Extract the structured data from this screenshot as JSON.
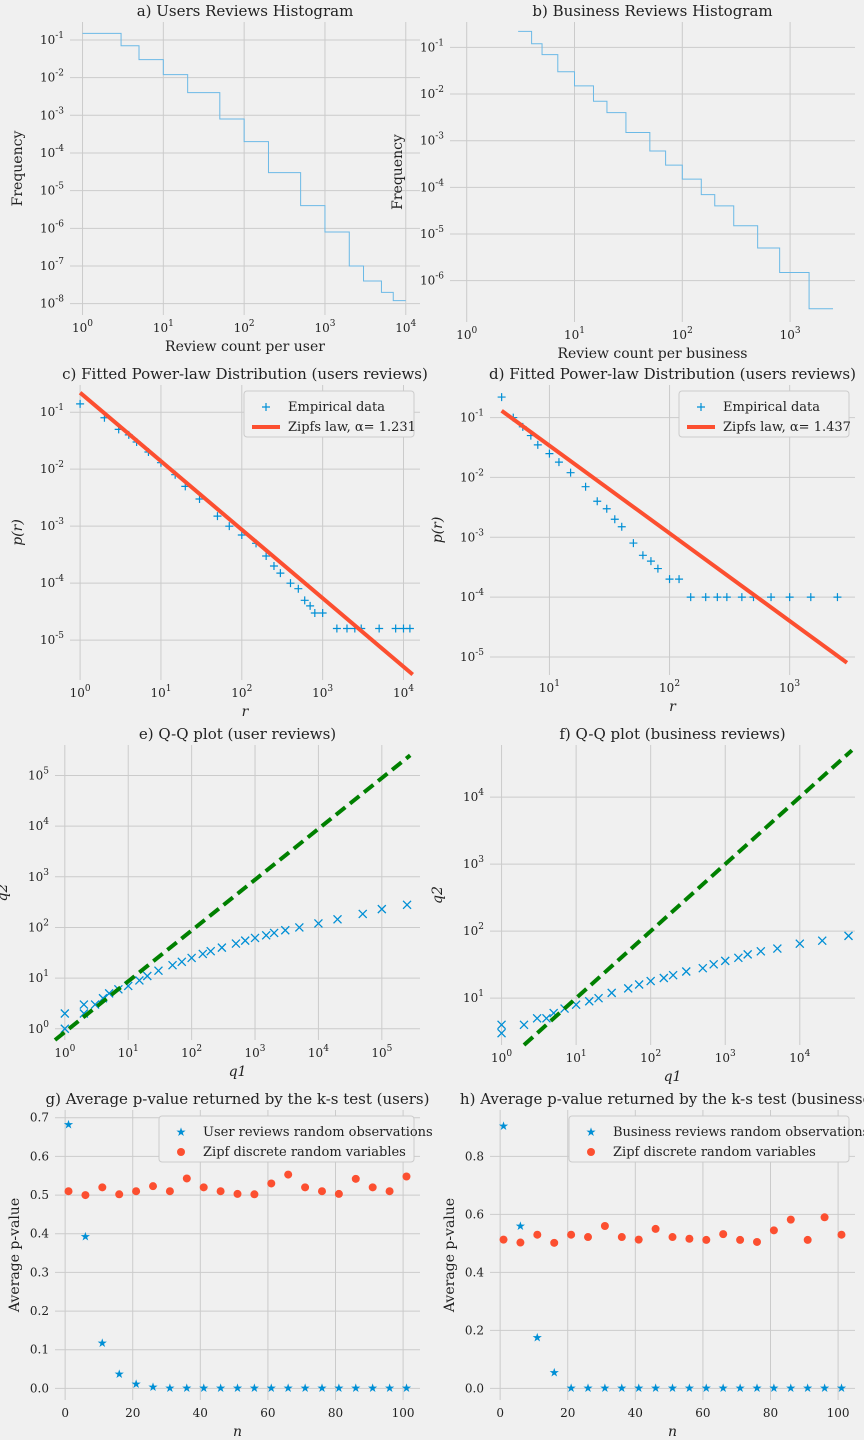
{
  "colors": {
    "blue": "#008fd5",
    "red": "#fc4f30",
    "green": "#008000",
    "grid": "#cbcbcb",
    "bg": "#f0f0f0"
  },
  "chart_data": [
    {
      "id": "a",
      "type": "line",
      "title": "a) Users Reviews Histogram",
      "xlabel": "Review count per user",
      "ylabel": "Frequency",
      "xscale": "log",
      "yscale": "log",
      "xlim": [
        0.7,
        15000
      ],
      "ylim": [
        5e-09,
        0.3
      ],
      "xticks": [
        1,
        10,
        100,
        1000,
        10000
      ],
      "xticklabels": [
        "10^0",
        "10^1",
        "10^2",
        "10^3",
        "10^4"
      ],
      "yticks": [
        1e-08,
        1e-07,
        1e-06,
        1e-05,
        0.0001,
        0.001,
        0.01,
        0.1
      ],
      "yticklabels": [
        "10^-8",
        "10^-7",
        "10^-6",
        "10^-5",
        "10^-4",
        "10^-3",
        "10^-2",
        "10^-1"
      ],
      "series": [
        {
          "style": "step",
          "color": "#6bb9e6",
          "x": [
            1,
            3,
            5,
            10,
            20,
            50,
            100,
            200,
            500,
            1000,
            2000,
            3000,
            5000,
            7000,
            10000
          ],
          "y": [
            0.15,
            0.07,
            0.03,
            0.012,
            0.004,
            0.0008,
            0.0002,
            3e-05,
            4e-06,
            8e-07,
            1e-07,
            4e-08,
            2e-08,
            1.2e-08,
            1.2e-08
          ]
        }
      ]
    },
    {
      "id": "b",
      "type": "line",
      "title": "b) Business Reviews Histogram",
      "xlabel": "Review count per business",
      "ylabel": "Frequency",
      "xscale": "log",
      "yscale": "log",
      "xlim": [
        0.7,
        4000
      ],
      "ylim": [
        1.3e-07,
        0.35
      ],
      "xticks": [
        1,
        10,
        100,
        1000
      ],
      "xticklabels": [
        "10^0",
        "10^1",
        "10^2",
        "10^3"
      ],
      "yticks": [
        1e-06,
        1e-05,
        0.0001,
        0.001,
        0.01,
        0.1
      ],
      "yticklabels": [
        "10^-6",
        "10^-5",
        "10^-4",
        "10^-3",
        "10^-2",
        "10^-1"
      ],
      "series": [
        {
          "style": "step",
          "color": "#6bb9e6",
          "x": [
            3,
            4,
            5,
            7,
            10,
            15,
            20,
            30,
            50,
            70,
            100,
            150,
            200,
            300,
            500,
            800,
            1500,
            2500
          ],
          "y": [
            0.22,
            0.12,
            0.07,
            0.03,
            0.015,
            0.007,
            0.004,
            0.0015,
            0.0006,
            0.0003,
            0.00015,
            7e-05,
            4e-05,
            1.5e-05,
            5e-06,
            1.5e-06,
            2.5e-07,
            2.5e-07
          ]
        }
      ]
    },
    {
      "id": "c",
      "type": "scatter",
      "title": "c) Fitted Power-law Distribution (users reviews)",
      "xlabel": "r",
      "ylabel": "p(r)",
      "xscale": "log",
      "yscale": "log",
      "xlim": [
        0.75,
        16000
      ],
      "ylim": [
        2e-06,
        0.3
      ],
      "xticks": [
        1,
        10,
        100,
        1000,
        10000
      ],
      "xticklabels": [
        "10^0",
        "10^1",
        "10^2",
        "10^3",
        "10^4"
      ],
      "yticks": [
        1e-05,
        0.0001,
        0.001,
        0.01,
        0.1
      ],
      "yticklabels": [
        "10^-5",
        "10^-4",
        "10^-3",
        "10^-2",
        "10^-1"
      ],
      "legend": [
        "Empirical data",
        "Zipfs law, α= 1.231"
      ],
      "legend_position": "upper right",
      "series": [
        {
          "name": "Empirical data",
          "marker": "plus",
          "color": "#008fd5",
          "kind": "scatter",
          "x": [
            1,
            2,
            3,
            4,
            5,
            7,
            10,
            15,
            20,
            30,
            50,
            70,
            100,
            150,
            200,
            250,
            300,
            400,
            500,
            600,
            700,
            800,
            1000,
            1500,
            2000,
            2500,
            3000,
            5000,
            8000,
            10000,
            12000
          ],
          "y": [
            0.14,
            0.08,
            0.05,
            0.04,
            0.03,
            0.02,
            0.013,
            0.008,
            0.005,
            0.003,
            0.0015,
            0.001,
            0.0007,
            0.0005,
            0.0003,
            0.0002,
            0.00015,
            0.0001,
            8e-05,
            5e-05,
            4e-05,
            3e-05,
            3e-05,
            1.6e-05,
            1.6e-05,
            1.6e-05,
            1.6e-05,
            1.6e-05,
            1.6e-05,
            1.6e-05,
            1.6e-05
          ]
        },
        {
          "name": "Zipfs law, α= 1.231",
          "kind": "line",
          "color": "#fc4f30",
          "x": [
            1,
            13000
          ],
          "y": [
            0.22,
            2.5e-06
          ]
        }
      ]
    },
    {
      "id": "d",
      "type": "scatter",
      "title": "d) Fitted Power-law Distribution (users reviews)",
      "xlabel": "r",
      "ylabel": "p(r)",
      "xscale": "log",
      "yscale": "log",
      "xlim": [
        3.2,
        3500
      ],
      "ylim": [
        5e-06,
        0.35
      ],
      "xticks": [
        10,
        100,
        1000
      ],
      "xticklabels": [
        "10^1",
        "10^2",
        "10^3"
      ],
      "yticks": [
        1e-05,
        0.0001,
        0.001,
        0.01,
        0.1
      ],
      "yticklabels": [
        "10^-5",
        "10^-4",
        "10^-3",
        "10^-2",
        "10^-1"
      ],
      "legend": [
        "Empirical data",
        "Zipfs law, α= 1.437"
      ],
      "legend_position": "upper right",
      "series": [
        {
          "name": "Empirical data",
          "marker": "plus",
          "color": "#008fd5",
          "kind": "scatter",
          "x": [
            4,
            5,
            6,
            7,
            8,
            10,
            12,
            15,
            20,
            25,
            30,
            35,
            40,
            50,
            60,
            70,
            80,
            100,
            120,
            150,
            200,
            250,
            300,
            400,
            500,
            700,
            1000,
            1500,
            2500
          ],
          "y": [
            0.22,
            0.1,
            0.07,
            0.05,
            0.035,
            0.025,
            0.018,
            0.012,
            0.007,
            0.004,
            0.003,
            0.002,
            0.0015,
            0.0008,
            0.0005,
            0.0004,
            0.0003,
            0.0002,
            0.0002,
            0.0001,
            0.0001,
            0.0001,
            0.0001,
            0.0001,
            0.0001,
            0.0001,
            0.0001,
            0.0001,
            0.0001
          ]
        },
        {
          "name": "Zipfs law, α= 1.437",
          "kind": "line",
          "color": "#fc4f30",
          "x": [
            4,
            3000
          ],
          "y": [
            0.13,
            8e-06
          ]
        }
      ]
    },
    {
      "id": "e",
      "type": "scatter",
      "title": "e) Q-Q plot (user reviews)",
      "xlabel": "q1",
      "ylabel": "q2",
      "xscale": "log",
      "yscale": "log",
      "xlim": [
        0.7,
        400000
      ],
      "ylim": [
        0.6,
        400000
      ],
      "xticks": [
        1,
        10,
        100,
        1000,
        10000,
        100000
      ],
      "xticklabels": [
        "10^0",
        "10^1",
        "10^2",
        "10^3",
        "10^4",
        "10^5"
      ],
      "yticks": [
        1,
        10,
        100,
        1000,
        10000,
        100000
      ],
      "yticklabels": [
        "10^0",
        "10^1",
        "10^2",
        "10^3",
        "10^4",
        "10^5"
      ],
      "series": [
        {
          "kind": "scatter",
          "marker": "x",
          "color": "#008fd5",
          "x": [
            1,
            1,
            2,
            2,
            3,
            4,
            5,
            7,
            10,
            15,
            20,
            30,
            50,
            70,
            100,
            150,
            200,
            300,
            500,
            700,
            1000,
            1500,
            2000,
            3000,
            5000,
            10000,
            20000,
            50000,
            100000,
            250000
          ],
          "y": [
            1,
            2,
            2,
            3,
            3,
            4,
            5,
            6,
            7,
            9,
            11,
            14,
            18,
            21,
            25,
            30,
            34,
            40,
            48,
            55,
            62,
            70,
            78,
            88,
            100,
            120,
            145,
            185,
            230,
            280
          ]
        },
        {
          "kind": "line",
          "style": "dashed",
          "color": "#008000",
          "x": [
            0.7,
            280000
          ],
          "y": [
            0.6,
            250000
          ]
        }
      ]
    },
    {
      "id": "f",
      "type": "scatter",
      "title": "f) Q-Q plot (business reviews)",
      "xlabel": "q1",
      "ylabel": "q2",
      "xscale": "log",
      "yscale": "log",
      "xlim": [
        0.7,
        55000
      ],
      "ylim": [
        2,
        60000
      ],
      "xticks": [
        1,
        10,
        100,
        1000,
        10000
      ],
      "xticklabels": [
        "10^0",
        "10^1",
        "10^2",
        "10^3",
        "10^4"
      ],
      "yticks": [
        10,
        100,
        1000,
        10000
      ],
      "yticklabels": [
        "10^1",
        "10^2",
        "10^3",
        "10^4"
      ],
      "series": [
        {
          "kind": "scatter",
          "marker": "x",
          "color": "#008fd5",
          "x": [
            1,
            1,
            2,
            3,
            4,
            5,
            7,
            10,
            15,
            20,
            30,
            50,
            70,
            100,
            150,
            200,
            300,
            500,
            700,
            1000,
            1500,
            2000,
            3000,
            5000,
            10000,
            20000,
            45000
          ],
          "y": [
            3,
            4,
            4,
            5,
            5,
            6,
            7,
            8,
            9,
            10,
            12,
            14,
            16,
            18,
            20,
            22,
            25,
            28,
            32,
            36,
            40,
            45,
            50,
            55,
            65,
            72,
            85
          ]
        },
        {
          "kind": "line",
          "style": "dashed",
          "color": "#008000",
          "x": [
            2,
            50000
          ],
          "y": [
            2,
            50000
          ]
        }
      ]
    },
    {
      "id": "g",
      "type": "scatter",
      "title": "g) Average p-value returned by the k-s test (users)",
      "xlabel": "n",
      "ylabel": "Average p-value",
      "xscale": "linear",
      "yscale": "linear",
      "xlim": [
        -3,
        105
      ],
      "ylim": [
        -0.03,
        0.72
      ],
      "xticks": [
        0,
        20,
        40,
        60,
        80,
        100
      ],
      "xticklabels": [
        "0",
        "20",
        "40",
        "60",
        "80",
        "100"
      ],
      "yticks": [
        0,
        0.1,
        0.2,
        0.3,
        0.4,
        0.5,
        0.6,
        0.7
      ],
      "yticklabels": [
        "0.0",
        "0.1",
        "0.2",
        "0.3",
        "0.4",
        "0.5",
        "0.6",
        "0.7"
      ],
      "legend": [
        "User reviews random observations",
        "Zipf discrete random variables"
      ],
      "legend_position": "upper right",
      "series": [
        {
          "name": "User reviews random observations",
          "kind": "scatter",
          "marker": "star",
          "color": "#008fd5",
          "x": [
            1,
            6,
            11,
            16,
            21,
            26,
            31,
            36,
            41,
            46,
            51,
            56,
            61,
            66,
            71,
            76,
            81,
            86,
            91,
            96,
            101
          ],
          "y": [
            0.683,
            0.393,
            0.118,
            0.037,
            0.012,
            0.004,
            0.001,
            0.001,
            0.001,
            0.001,
            0.001,
            0.001,
            0.001,
            0.001,
            0.001,
            0.001,
            0.001,
            0.001,
            0.001,
            0.001,
            0.001
          ]
        },
        {
          "name": "Zipf discrete random variables",
          "kind": "scatter",
          "marker": "circle",
          "color": "#fc4f30",
          "x": [
            1,
            6,
            11,
            16,
            21,
            26,
            31,
            36,
            41,
            46,
            51,
            56,
            61,
            66,
            71,
            76,
            81,
            86,
            91,
            96,
            101
          ],
          "y": [
            0.51,
            0.5,
            0.52,
            0.502,
            0.51,
            0.523,
            0.51,
            0.543,
            0.52,
            0.51,
            0.503,
            0.502,
            0.53,
            0.553,
            0.52,
            0.51,
            0.503,
            0.542,
            0.52,
            0.51,
            0.548
          ]
        }
      ]
    },
    {
      "id": "h",
      "type": "scatter",
      "title": "h) Average p-value returned by the k-s test (businesses)",
      "xlabel": "n",
      "ylabel": "Average p-value",
      "xscale": "linear",
      "yscale": "linear",
      "xlim": [
        -3,
        105
      ],
      "ylim": [
        -0.04,
        0.96
      ],
      "xticks": [
        0,
        20,
        40,
        60,
        80,
        100
      ],
      "xticklabels": [
        "0",
        "20",
        "40",
        "60",
        "80",
        "100"
      ],
      "yticks": [
        0,
        0.2,
        0.4,
        0.6,
        0.8
      ],
      "yticklabels": [
        "0.0",
        "0.2",
        "0.4",
        "0.6",
        "0.8"
      ],
      "legend": [
        "Business reviews random observations",
        "Zipf discrete random variables"
      ],
      "legend_position": "upper right",
      "series": [
        {
          "name": "Business reviews random observations",
          "kind": "scatter",
          "marker": "star",
          "color": "#008fd5",
          "x": [
            1,
            6,
            11,
            16,
            21,
            26,
            31,
            36,
            41,
            46,
            51,
            56,
            61,
            66,
            71,
            76,
            81,
            86,
            91,
            96,
            101
          ],
          "y": [
            0.905,
            0.56,
            0.175,
            0.055,
            0.002,
            0.001,
            0.001,
            0.001,
            0.001,
            0.001,
            0.001,
            0.001,
            0.001,
            0.001,
            0.001,
            0.001,
            0.001,
            0.001,
            0.001,
            0.001,
            0.001
          ]
        },
        {
          "name": "Zipf discrete random variables",
          "kind": "scatter",
          "marker": "circle",
          "color": "#fc4f30",
          "x": [
            1,
            6,
            11,
            16,
            21,
            26,
            31,
            36,
            41,
            46,
            51,
            56,
            61,
            66,
            71,
            76,
            81,
            86,
            91,
            96,
            101
          ],
          "y": [
            0.513,
            0.503,
            0.53,
            0.502,
            0.53,
            0.522,
            0.56,
            0.522,
            0.513,
            0.55,
            0.522,
            0.516,
            0.512,
            0.532,
            0.512,
            0.505,
            0.545,
            0.582,
            0.512,
            0.59,
            0.53
          ]
        }
      ]
    }
  ]
}
